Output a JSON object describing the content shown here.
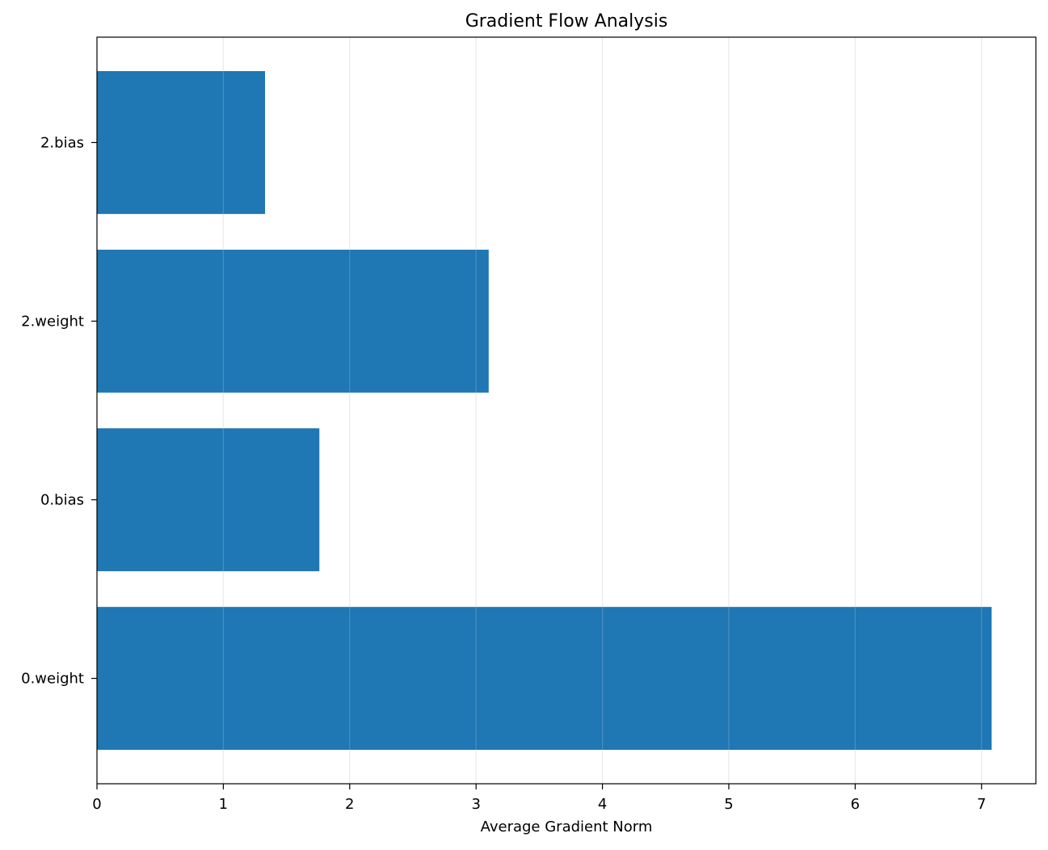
{
  "chart_data": {
    "type": "bar",
    "orientation": "horizontal",
    "title": "Gradient Flow Analysis",
    "xlabel": "Average Gradient Norm",
    "ylabel": "",
    "categories": [
      "0.weight",
      "0.bias",
      "2.weight",
      "2.bias"
    ],
    "values": [
      7.08,
      1.76,
      3.1,
      1.33
    ],
    "xlim": [
      0,
      7.43
    ],
    "xticks": [
      0,
      1,
      2,
      3,
      4,
      5,
      6,
      7
    ],
    "xtick_labels": [
      "0",
      "1",
      "2",
      "3",
      "4",
      "5",
      "6",
      "7"
    ],
    "grid": "x-axis vertical lines",
    "bar_color": "#1f77b4",
    "grid_color": "#e6e6e6"
  }
}
